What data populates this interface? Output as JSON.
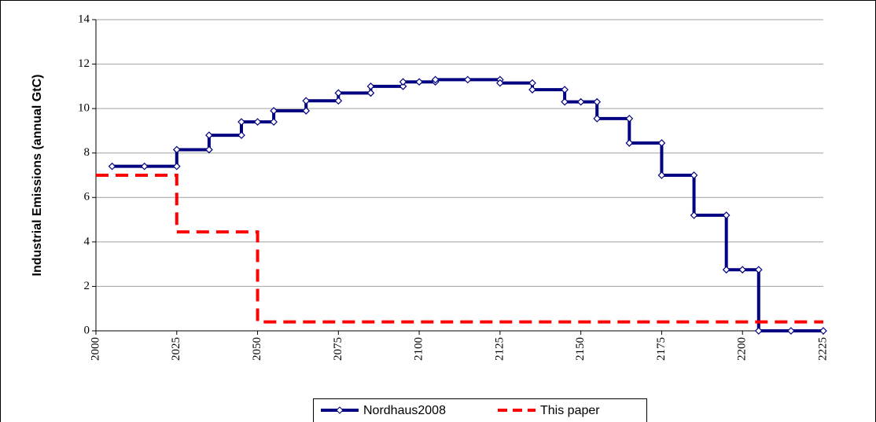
{
  "chart_data": {
    "type": "line",
    "y_label": "Industrial Emissions (annual GtC)",
    "xlim": [
      2000,
      2225
    ],
    "xticks": [
      2000,
      2025,
      2050,
      2075,
      2100,
      2125,
      2150,
      2175,
      2200,
      2225
    ],
    "ylim": [
      0,
      14
    ],
    "yticks": [
      0,
      2,
      4,
      6,
      8,
      10,
      12,
      14
    ],
    "grid": true,
    "legend": "bottom",
    "series": [
      {
        "name": "Nordhaus2008",
        "color": "#000080",
        "markers": true,
        "x": [
          2005,
          2015,
          2025,
          2025,
          2035,
          2035,
          2045,
          2045,
          2050,
          2055,
          2055,
          2065,
          2065,
          2075,
          2075,
          2085,
          2085,
          2095,
          2095,
          2100,
          2105,
          2105,
          2115,
          2125,
          2125,
          2135,
          2135,
          2145,
          2145,
          2150,
          2155,
          2155,
          2165,
          2165,
          2175,
          2175,
          2185,
          2185,
          2195,
          2195,
          2200,
          2205,
          2205,
          2215,
          2225
        ],
        "y": [
          7.4,
          7.4,
          7.4,
          8.15,
          8.15,
          8.8,
          8.8,
          9.4,
          9.4,
          9.4,
          9.9,
          9.9,
          10.35,
          10.35,
          10.7,
          10.7,
          11.0,
          11.0,
          11.2,
          11.2,
          11.2,
          11.3,
          11.3,
          11.3,
          11.15,
          11.15,
          10.85,
          10.85,
          10.3,
          10.3,
          10.3,
          9.55,
          9.55,
          8.45,
          8.45,
          7.0,
          7.0,
          5.2,
          5.2,
          2.75,
          2.75,
          2.75,
          0,
          0,
          0
        ]
      },
      {
        "name": "This paper",
        "color": "#ff0000",
        "markers": false,
        "dashed": true,
        "x": [
          2000,
          2025,
          2025,
          2050,
          2050,
          2225
        ],
        "y": [
          7,
          7,
          4.45,
          4.45,
          0.4,
          0.4
        ]
      }
    ]
  }
}
